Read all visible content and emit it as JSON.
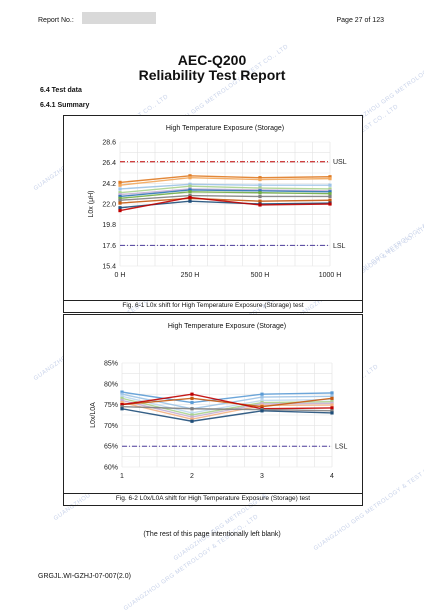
{
  "header": {
    "report_no_label": "Report No.:",
    "page_label": "Page 27 of 123"
  },
  "title": {
    "line1": "AEC-Q200",
    "line2": "Reliability Test Report"
  },
  "sections": {
    "s1": "6.4 Test data",
    "s2": "6.4.1 Summary"
  },
  "watermark": {
    "text": "GUANGZHOU GRG METROLOGY & TEST CO., LTD"
  },
  "chart_data": [
    {
      "type": "line",
      "title": "High Temperature Exposure (Storage)",
      "ylabel": "L0x (μH)",
      "categories": [
        "0 H",
        "250 H",
        "500 H",
        "1000 H"
      ],
      "ylim": [
        15.4,
        28.6
      ],
      "yticks": [
        "28.6",
        "26.4",
        "24.2",
        "22.0",
        "19.8",
        "17.6",
        "15.4"
      ],
      "limits": [
        {
          "name": "USL",
          "value": 26.5,
          "color": "#c00000"
        },
        {
          "name": "LSL",
          "value": 17.6,
          "color": "#4b3a9a"
        }
      ],
      "series": [
        {
          "values": [
            24.3,
            25.0,
            24.8,
            24.9
          ],
          "color": "#e07b24"
        },
        {
          "values": [
            24.0,
            24.8,
            24.6,
            24.7
          ],
          "color": "#f2a65a"
        },
        {
          "values": [
            23.6,
            24.1,
            24.0,
            24.0
          ],
          "color": "#9dc3e6"
        },
        {
          "values": [
            23.2,
            23.9,
            23.7,
            23.6
          ],
          "color": "#a9d18e"
        },
        {
          "values": [
            23.0,
            23.6,
            23.5,
            23.4
          ],
          "color": "#c5b0d5"
        },
        {
          "values": [
            22.8,
            23.5,
            23.4,
            23.3
          ],
          "color": "#2e75b6"
        },
        {
          "values": [
            22.6,
            23.3,
            23.2,
            23.1
          ],
          "color": "#70ad47"
        },
        {
          "values": [
            22.4,
            22.9,
            22.8,
            22.8
          ],
          "color": "#7f7f7f"
        },
        {
          "values": [
            22.1,
            22.6,
            22.3,
            22.4
          ],
          "color": "#c55a11"
        },
        {
          "values": [
            21.6,
            22.3,
            22.0,
            22.1
          ],
          "color": "#1f4e79"
        },
        {
          "values": [
            21.3,
            22.7,
            21.9,
            22.0
          ],
          "color": "#c00000"
        }
      ]
    },
    {
      "type": "line",
      "title": "High Temperature Exposure (Storage)",
      "ylabel": "L0x/L0A",
      "categories": [
        "1",
        "2",
        "3",
        "4"
      ],
      "ylim": [
        60,
        85
      ],
      "yticks": [
        "85%",
        "80%",
        "75%",
        "70%",
        "65%",
        "60%"
      ],
      "limits": [
        {
          "name": "LSL",
          "value": 65,
          "color": "#4b3a9a"
        }
      ],
      "series": [
        {
          "values": [
            78.0,
            75.5,
            77.5,
            77.8
          ],
          "color": "#5b9bd5"
        },
        {
          "values": [
            77.5,
            74.0,
            76.8,
            77.0
          ],
          "color": "#9dc3e6"
        },
        {
          "values": [
            77.0,
            73.0,
            76.0,
            76.2
          ],
          "color": "#bdd7ee"
        },
        {
          "values": [
            76.5,
            72.5,
            75.5,
            75.7
          ],
          "color": "#a9d18e"
        },
        {
          "values": [
            76.0,
            72.0,
            75.2,
            75.3
          ],
          "color": "#c5b0d5"
        },
        {
          "values": [
            75.5,
            71.5,
            74.8,
            74.9
          ],
          "color": "#f4b183"
        },
        {
          "values": [
            75.0,
            76.5,
            74.5,
            76.5
          ],
          "color": "#c55a11"
        },
        {
          "values": [
            75.0,
            77.5,
            74.0,
            74.2
          ],
          "color": "#c00000"
        },
        {
          "values": [
            74.5,
            74.0,
            73.8,
            73.5
          ],
          "color": "#7f7f7f"
        },
        {
          "values": [
            74.0,
            71.0,
            73.5,
            73.0
          ],
          "color": "#1f4e79"
        }
      ]
    }
  ],
  "captions": {
    "fig1": "Fig. 6-1 L0x shift for High Temperature Exposure (Storage) test",
    "fig2": "Fig. 6-2 L0x/L0A shift for High Temperature Exposure (Storage) test"
  },
  "note": "(The rest of this page intentionally left blank)",
  "footer": {
    "doc_id": "GRGJL.WI-GZHJ-07-007(2.0)"
  }
}
